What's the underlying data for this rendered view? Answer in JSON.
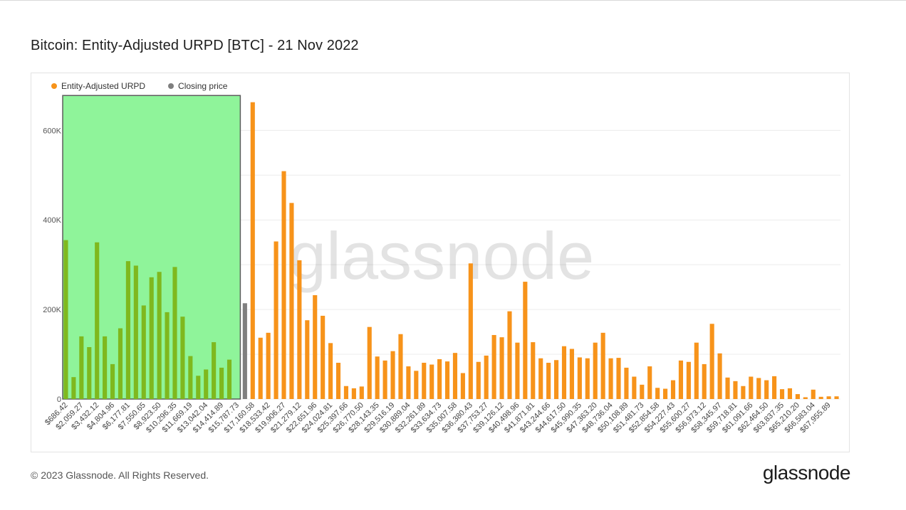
{
  "title": "Bitcoin: Entity-Adjusted URPD [BTC] - 21 Nov 2022",
  "footer": "© 2023 Glassnode. All Rights Reserved.",
  "logo": "glassnode",
  "watermark": "glassnode",
  "legend": [
    {
      "label": "Entity-Adjusted URPD",
      "color": "#f7931a"
    },
    {
      "label": "Closing price",
      "color": "#7f7f7f"
    }
  ],
  "colors": {
    "bar": "#f7931a",
    "bar_in_zone": "#7fb81e",
    "closing": "#7f7f7f",
    "zone_fill": "#8ff49a",
    "zone_stroke": "#5d5d5d"
  },
  "chart_data": {
    "type": "bar",
    "title": "Bitcoin: Entity-Adjusted URPD [BTC] - 21 Nov 2022",
    "xlabel": "",
    "ylabel": "",
    "ylim": [
      0,
      680000
    ],
    "yticks": [
      0,
      200000,
      400000,
      600000
    ],
    "ytick_labels": [
      "0",
      "200K",
      "400K",
      "600K"
    ],
    "grid": true,
    "legend_position": "top-left",
    "closing_price_index": 23,
    "highlight_zone": {
      "from_index": 0,
      "to_index": 22
    },
    "x_tick_labels": [
      "$686.42",
      "$2,059.27",
      "$3,432.12",
      "$4,804.96",
      "$6,177.81",
      "$7,550.65",
      "$8,923.50",
      "$10,296.35",
      "$11,669.19",
      "$13,042.04",
      "$14,414.89",
      "$15,787.73",
      "$17,160.58",
      "$18,533.42",
      "$19,906.27",
      "$21,279.12",
      "$22,651.96",
      "$24,024.81",
      "$25,397.66",
      "$26,770.50",
      "$28,143.35",
      "$29,516.19",
      "$30,889.04",
      "$32,261.89",
      "$33,634.73",
      "$35,007.58",
      "$36,380.43",
      "$37,753.27",
      "$39,126.12",
      "$40,498.96",
      "$41,871.81",
      "$43,244.66",
      "$44,617.50",
      "$45,990.35",
      "$47,363.20",
      "$48,736.04",
      "$50,108.89",
      "$51,481.73",
      "$52,854.58",
      "$54,227.43",
      "$55,600.27",
      "$56,973.12",
      "$58,345.97",
      "$59,718.81",
      "$61,091.66",
      "$62,464.50",
      "$63,837.35",
      "$65,210.20",
      "$66,583.04",
      "$67,955.89"
    ],
    "series": [
      {
        "name": "Entity-Adjusted URPD",
        "values": [
          355000,
          49000,
          140000,
          116000,
          350000,
          140000,
          78000,
          158000,
          308000,
          298000,
          209000,
          272000,
          284000,
          194000,
          295000,
          184000,
          96000,
          52000,
          66000,
          127000,
          70000,
          88000,
          0,
          214000,
          663000,
          137000,
          148000,
          352000,
          509000,
          438000,
          310000,
          176000,
          232000,
          186000,
          125000,
          81000,
          29000,
          24000,
          28000,
          161000,
          95000,
          86000,
          107000,
          145000,
          73000,
          63000,
          81000,
          77000,
          89000,
          84000,
          103000,
          58000,
          303000,
          83000,
          97000,
          143000,
          138000,
          196000,
          126000,
          262000,
          127000,
          91000,
          81000,
          87000,
          118000,
          112000,
          93000,
          91000,
          126000,
          148000,
          91000,
          92000,
          70000,
          50000,
          32000,
          73000,
          25000,
          23000,
          42000,
          86000,
          83000,
          126000,
          78000,
          168000,
          102000,
          48000,
          40000,
          29000,
          50000,
          47000,
          42000,
          51000,
          22000,
          24000,
          11000,
          4000,
          21000,
          5000,
          6000,
          6000
        ]
      }
    ]
  }
}
